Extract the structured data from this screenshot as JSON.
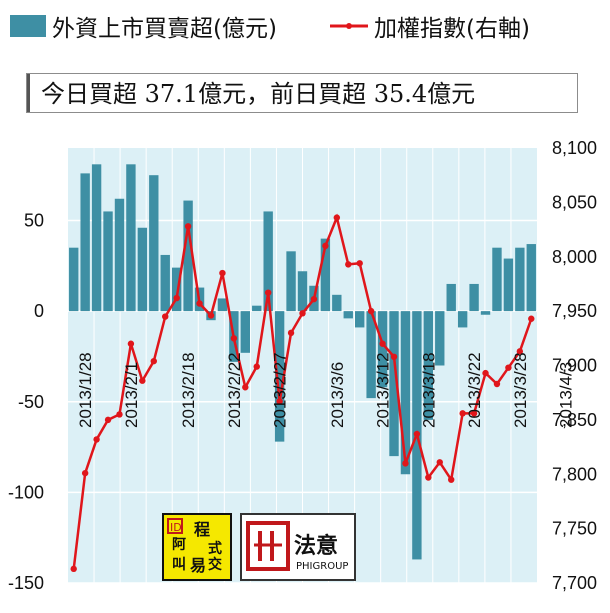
{
  "legend": {
    "bar_label": "外資上市買賣超(億元)",
    "line_label": "加權指數(右軸)"
  },
  "summary_text": "今日買超 37.1億元，前日買超 35.4億元",
  "logos": {
    "left_chars": [
      "阿",
      "叫",
      "程",
      "式",
      "交",
      "易"
    ],
    "right_text": "法意",
    "right_subtext": "PHIGROUP"
  },
  "colors": {
    "bar": "#3e8fa4",
    "line": "#e0161b",
    "plot_bg": "#dcefF5",
    "grid": "#ffffff"
  },
  "chart_data": {
    "type": "bar",
    "title": "",
    "x_tick_labels": [
      "2013/1/28",
      "2013/2/1",
      "2013/2/18",
      "2013/2/22",
      "2013/2/27",
      "2013/3/6",
      "2013/3/12",
      "2013/3/18",
      "2013/3/22",
      "2013/3/28",
      "2013/4/3"
    ],
    "x_tick_indices": [
      1,
      5,
      10,
      14,
      18,
      23,
      27,
      31,
      35,
      39,
      43
    ],
    "y_left": {
      "ticks": [
        50,
        0,
        -50,
        -100,
        -150
      ],
      "ylim": [
        -150,
        90
      ]
    },
    "y_right": {
      "ticks": [
        "8,100",
        "8,050",
        "8,000",
        "7,950",
        "7,900",
        "7,850",
        "7,800",
        "7,750",
        "7,700"
      ],
      "ylim": [
        7700,
        8100
      ]
    },
    "series": [
      {
        "name": "外資上市買賣超(億元)",
        "type": "bar",
        "axis": "left",
        "values": [
          35,
          76,
          81,
          55,
          62,
          81,
          46,
          75,
          31,
          24,
          61,
          13,
          -5,
          7,
          -28,
          -23,
          3,
          55,
          -72,
          33,
          22,
          14,
          40,
          9,
          -4,
          -9,
          -48,
          -42,
          -80,
          -90,
          -137,
          -60,
          -30,
          15,
          -9,
          15,
          -2,
          35,
          29,
          35,
          37
        ]
      },
      {
        "name": "加權指數(右軸)",
        "type": "line",
        "axis": "right",
        "values": [
          7713,
          7801,
          7832,
          7850,
          7855,
          7920,
          7886,
          7904,
          7945,
          7962,
          8028,
          7957,
          7946,
          7985,
          7925,
          7880,
          7899,
          7967,
          7867,
          7930,
          7948,
          7961,
          8010,
          8036,
          7993,
          7994,
          7950,
          7920,
          7908,
          7810,
          7837,
          7797,
          7811,
          7795,
          7856,
          7856,
          7893,
          7883,
          7898,
          7913,
          7943
        ]
      }
    ]
  }
}
